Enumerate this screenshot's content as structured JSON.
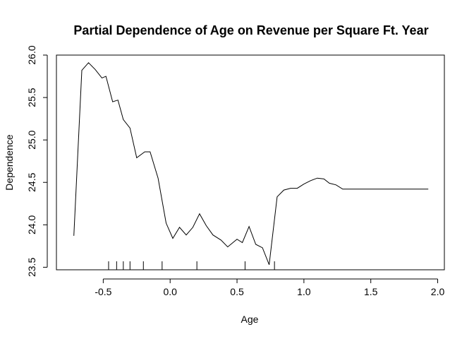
{
  "chart_data": {
    "type": "line",
    "title": "Partial Dependence of Age on Revenue per Square Ft. Year",
    "xlabel": "Age",
    "ylabel": "Dependence",
    "xlim": [
      -0.85,
      2.05
    ],
    "ylim": [
      23.47,
      26.0
    ],
    "xticks": [
      -0.5,
      0.0,
      0.5,
      1.0,
      1.5,
      2.0
    ],
    "xtick_labels": [
      "-0.5",
      "0.0",
      "0.5",
      "1.0",
      "1.5",
      "2.0"
    ],
    "yticks": [
      23.5,
      24.0,
      24.5,
      25.0,
      25.5,
      26.0
    ],
    "ytick_labels": [
      "23.5",
      "24.0",
      "24.5",
      "25.0",
      "25.5",
      "26.0"
    ],
    "grid": false,
    "legend": "none",
    "line_color": "#000000",
    "series": [
      {
        "x": [
          -0.72,
          -0.66,
          -0.61,
          -0.56,
          -0.51,
          -0.48,
          -0.43,
          -0.39,
          -0.35,
          -0.3,
          -0.25,
          -0.19,
          -0.15,
          -0.09,
          -0.03,
          0.02,
          0.07,
          0.12,
          0.17,
          0.22,
          0.27,
          0.32,
          0.38,
          0.43,
          0.5,
          0.54,
          0.59,
          0.64,
          0.69,
          0.74,
          0.8,
          0.85,
          0.9,
          0.95,
          1.0,
          1.05,
          1.1,
          1.15,
          1.19,
          1.24,
          1.29,
          1.34,
          1.39,
          1.46,
          1.6,
          1.8,
          1.93
        ],
        "y": [
          23.87,
          25.82,
          25.91,
          25.83,
          25.73,
          25.75,
          25.45,
          25.47,
          25.24,
          25.14,
          24.79,
          24.86,
          24.86,
          24.55,
          24.02,
          23.84,
          23.97,
          23.88,
          23.97,
          24.13,
          23.99,
          23.88,
          23.82,
          23.74,
          23.83,
          23.79,
          23.98,
          23.77,
          23.73,
          23.53,
          24.33,
          24.41,
          24.43,
          24.43,
          24.48,
          24.52,
          24.55,
          24.54,
          24.49,
          24.47,
          24.42,
          24.42,
          24.42,
          24.42,
          24.42,
          24.42,
          24.42
        ]
      }
    ],
    "rug": [
      -0.46,
      -0.4,
      -0.35,
      -0.3,
      -0.2,
      -0.06,
      0.2,
      0.56,
      0.78
    ]
  }
}
